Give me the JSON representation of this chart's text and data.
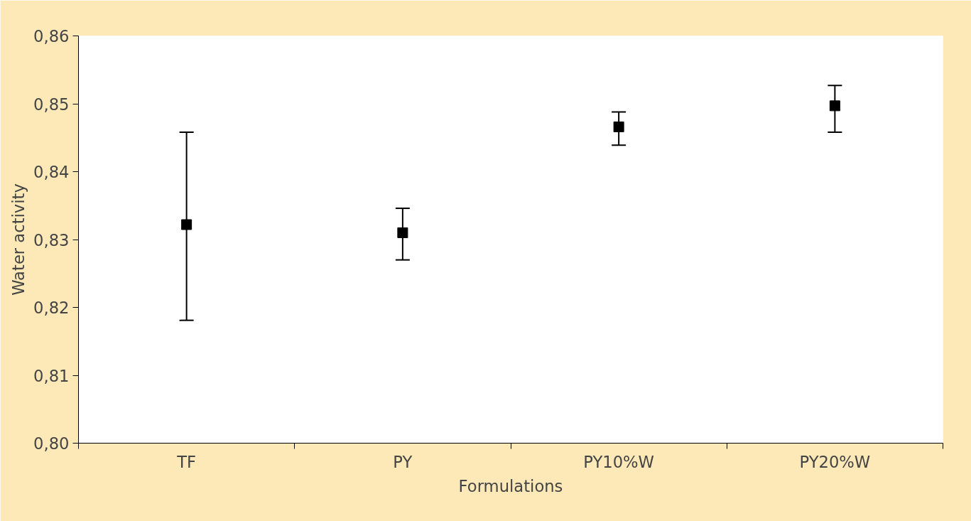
{
  "chart_data": {
    "type": "scatter",
    "xlabel": "Formulations",
    "ylabel": "Water activity",
    "categories": [
      "TF",
      "PY",
      "PY10%W",
      "PY20%W"
    ],
    "values": [
      0.8322,
      0.831,
      0.8466,
      0.8497
    ],
    "errors": [
      [
        0.8181,
        0.8458
      ],
      [
        0.827,
        0.8346
      ],
      [
        0.8439,
        0.8488
      ],
      [
        0.8458,
        0.8527
      ]
    ],
    "color": "#000000",
    "marker": "square",
    "grid": false,
    "legend": false,
    "ylim": [
      0.8,
      0.86
    ],
    "yticks": [
      {
        "value": 0.8,
        "label": "0,80"
      },
      {
        "value": 0.81,
        "label": "0,81"
      },
      {
        "value": 0.82,
        "label": "0,82"
      },
      {
        "value": 0.83,
        "label": "0,83"
      },
      {
        "value": 0.84,
        "label": "0,84"
      },
      {
        "value": 0.85,
        "label": "0,85"
      },
      {
        "value": 0.86,
        "label": "0,86"
      }
    ]
  }
}
